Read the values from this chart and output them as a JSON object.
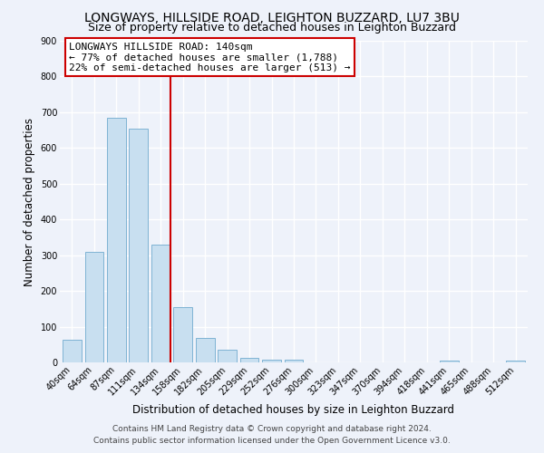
{
  "title": "LONGWAYS, HILLSIDE ROAD, LEIGHTON BUZZARD, LU7 3BU",
  "subtitle": "Size of property relative to detached houses in Leighton Buzzard",
  "xlabel": "Distribution of detached houses by size in Leighton Buzzard",
  "ylabel": "Number of detached properties",
  "bar_labels": [
    "40sqm",
    "64sqm",
    "87sqm",
    "111sqm",
    "134sqm",
    "158sqm",
    "182sqm",
    "205sqm",
    "229sqm",
    "252sqm",
    "276sqm",
    "300sqm",
    "323sqm",
    "347sqm",
    "370sqm",
    "394sqm",
    "418sqm",
    "441sqm",
    "465sqm",
    "488sqm",
    "512sqm"
  ],
  "bar_values": [
    63,
    310,
    685,
    655,
    330,
    155,
    68,
    35,
    13,
    7,
    8,
    0,
    0,
    0,
    0,
    0,
    0,
    5,
    0,
    0,
    5
  ],
  "bar_color": "#c8dff0",
  "bar_edge_color": "#7fb3d3",
  "vline_x_index": 4,
  "vline_color": "#cc0000",
  "annotation_title": "LONGWAYS HILLSIDE ROAD: 140sqm",
  "annotation_line1": "← 77% of detached houses are smaller (1,788)",
  "annotation_line2": "22% of semi-detached houses are larger (513) →",
  "annotation_box_color": "#ffffff",
  "annotation_box_edge": "#cc0000",
  "ylim": [
    0,
    900
  ],
  "yticks": [
    0,
    100,
    200,
    300,
    400,
    500,
    600,
    700,
    800,
    900
  ],
  "footer_line1": "Contains HM Land Registry data © Crown copyright and database right 2024.",
  "footer_line2": "Contains public sector information licensed under the Open Government Licence v3.0.",
  "background_color": "#eef2fa",
  "grid_color": "#ffffff",
  "title_fontsize": 10,
  "subtitle_fontsize": 9,
  "axis_label_fontsize": 8.5,
  "tick_fontsize": 7,
  "annotation_fontsize": 8,
  "footer_fontsize": 6.5
}
